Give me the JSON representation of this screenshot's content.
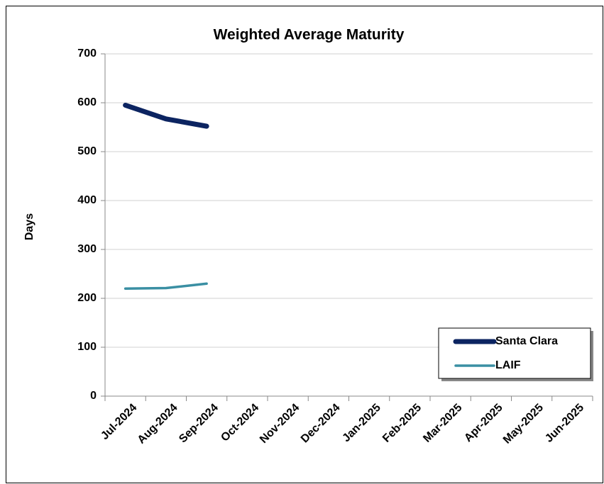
{
  "chart_data": {
    "type": "line",
    "title": "Weighted Average Maturity",
    "ylabel": "Days",
    "categories": [
      "Jul-2024",
      "Aug-2024",
      "Sep-2024",
      "Oct-2024",
      "Nov-2024",
      "Dec-2024",
      "Jan-2025",
      "Feb-2025",
      "Mar-2025",
      "Apr-2025",
      "May-2025",
      "Jun-2025"
    ],
    "series": [
      {
        "name": "Santa Clara",
        "color": "#0c2461",
        "values": [
          595,
          567,
          552,
          null,
          null,
          null,
          null,
          null,
          null,
          null,
          null,
          null
        ]
      },
      {
        "name": "LAIF",
        "color": "#3a8fa3",
        "values": [
          220,
          221,
          230,
          null,
          null,
          null,
          null,
          null,
          null,
          null,
          null,
          null
        ]
      }
    ],
    "ylim": [
      0,
      700
    ],
    "yticks": [
      0,
      100,
      200,
      300,
      400,
      500,
      600,
      700
    ],
    "grid": true,
    "legend": "lower right"
  }
}
